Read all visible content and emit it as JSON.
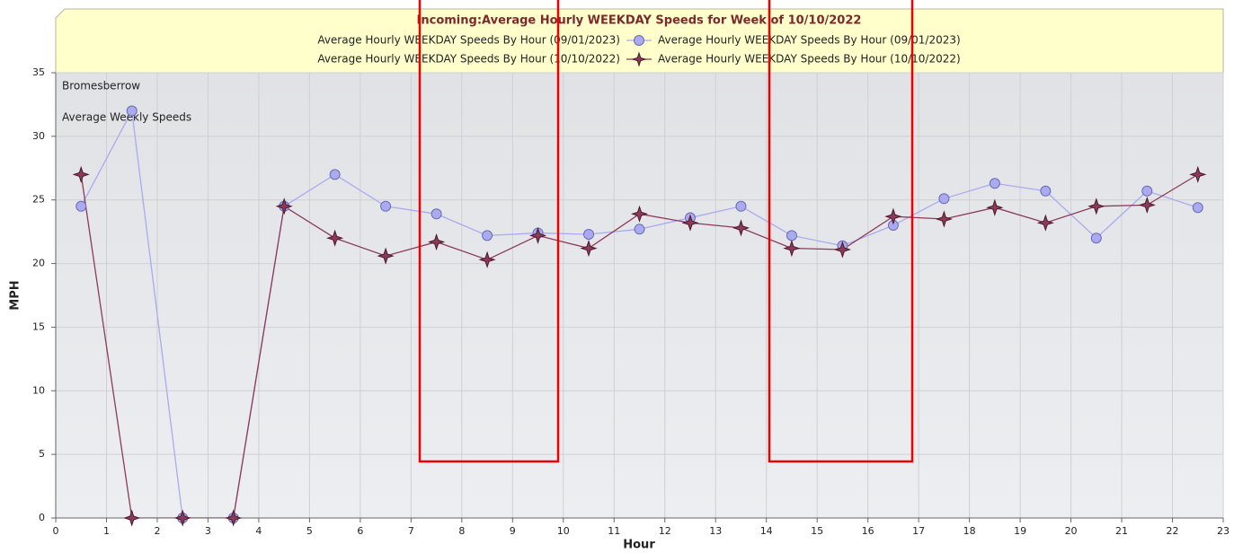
{
  "chart_data": {
    "type": "line",
    "title": "Incoming:Average Hourly WEEKDAY Speeds for Week of 10/10/2022",
    "annotations": [
      "Bromesberrow",
      "Average Weekly Speeds"
    ],
    "xlabel": "Hour",
    "ylabel": "MPH",
    "x": [
      0.5,
      1.5,
      2.5,
      3.5,
      4.5,
      5.5,
      6.5,
      7.5,
      8.5,
      9.5,
      10.5,
      11.5,
      12.5,
      13.5,
      14.5,
      15.5,
      16.5,
      17.5,
      18.5,
      19.5,
      20.5,
      21.5,
      22.5
    ],
    "series": [
      {
        "name": "Average Hourly WEEKDAY Speeds By Hour (09/01/2023)",
        "color": "#a9aaf0",
        "marker": "circle",
        "values": [
          24.5,
          32,
          0,
          0,
          24.5,
          27,
          24.5,
          23.9,
          22.2,
          22.4,
          22.3,
          22.7,
          23.6,
          24.5,
          22.2,
          21.4,
          23.0,
          25.1,
          26.3,
          25.7,
          22.0,
          25.7,
          24.4
        ]
      },
      {
        "name": "Average Hourly WEEKDAY Speeds By Hour (10/10/2022)",
        "color": "#8b3a5a",
        "marker": "star",
        "values": [
          27,
          0,
          0,
          0,
          24.5,
          22,
          20.6,
          21.7,
          20.3,
          22.2,
          21.2,
          23.9,
          23.2,
          22.8,
          21.2,
          21.1,
          23.7,
          23.5,
          24.4,
          23.2,
          24.5,
          24.6,
          27
        ]
      }
    ],
    "xlim": [
      0,
      23
    ],
    "xticks": [
      0,
      1,
      2,
      3,
      4,
      5,
      6,
      7,
      8,
      9,
      10,
      11,
      12,
      13,
      14,
      15,
      16,
      17,
      18,
      19,
      20,
      21,
      22,
      23
    ],
    "ylim": [
      0,
      35
    ],
    "yticks": [
      0,
      5,
      10,
      15,
      20,
      25,
      30,
      35
    ],
    "grid": true
  }
}
